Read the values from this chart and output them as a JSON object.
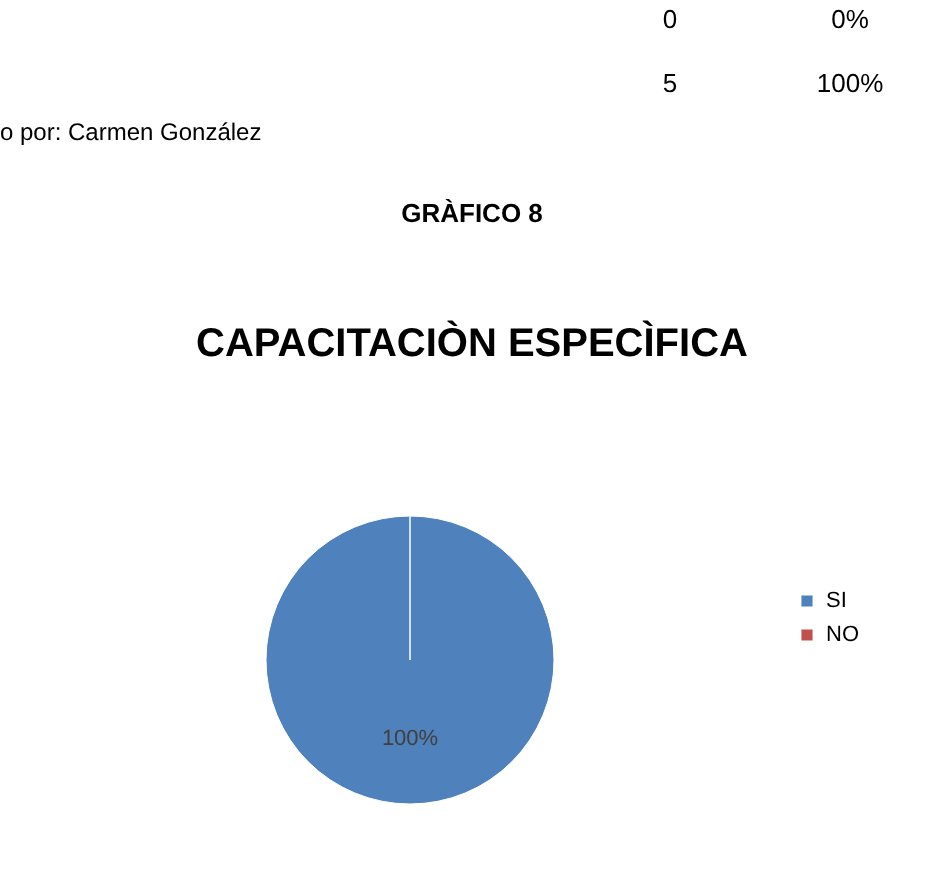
{
  "chart_data": {
    "type": "pie",
    "title": "CAPACITACIÒN ESPECÌFICA",
    "categories": [
      "SI",
      "NO"
    ],
    "values": [
      100,
      0
    ],
    "colors": [
      "#4f81bd",
      "#c0504d"
    ],
    "value_labels": [
      "100%",
      null
    ],
    "legend": "right",
    "annotations": [
      "0",
      "0%",
      "5",
      "100%",
      "o por: Carmen González",
      "GRÀFICO 8"
    ]
  }
}
